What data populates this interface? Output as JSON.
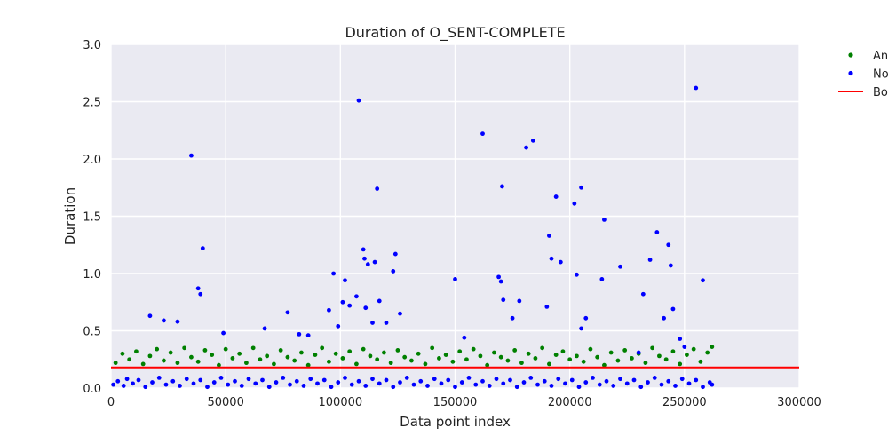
{
  "chart_data": {
    "type": "scatter",
    "title": "Duration of O_SENT-COMPLETE",
    "xlabel": "Data point index",
    "ylabel": "Duration",
    "xlim": [
      0,
      300000
    ],
    "ylim": [
      0,
      3.0
    ],
    "xticks": [
      0,
      50000,
      100000,
      150000,
      200000,
      250000,
      300000
    ],
    "xtick_labels": [
      "0",
      "50000",
      "100000",
      "150000",
      "200000",
      "250000",
      "300000"
    ],
    "yticks": [
      0.0,
      0.5,
      1.0,
      1.5,
      2.0,
      2.5,
      3.0
    ],
    "ytick_labels": [
      "0.0",
      "0.5",
      "1.0",
      "1.5",
      "2.0",
      "2.5",
      "3.0"
    ],
    "grid": true,
    "background": "#eaeaf2",
    "legend": {
      "placement": "outside-top-right",
      "entries": [
        {
          "label": "An",
          "marker": "dot",
          "color": "#008000"
        },
        {
          "label": "No",
          "marker": "dot",
          "color": "#0000ff"
        },
        {
          "label": "Bo",
          "marker": "line",
          "color": "#ff0000"
        }
      ]
    },
    "series": [
      {
        "name": "An",
        "color": "#008000",
        "points": [
          [
            2000,
            0.22
          ],
          [
            5000,
            0.3
          ],
          [
            8000,
            0.25
          ],
          [
            11000,
            0.32
          ],
          [
            14000,
            0.21
          ],
          [
            17000,
            0.28
          ],
          [
            20000,
            0.34
          ],
          [
            23000,
            0.24
          ],
          [
            26000,
            0.31
          ],
          [
            29000,
            0.22
          ],
          [
            32000,
            0.35
          ],
          [
            35000,
            0.27
          ],
          [
            38000,
            0.23
          ],
          [
            41000,
            0.33
          ],
          [
            44000,
            0.29
          ],
          [
            47000,
            0.2
          ],
          [
            50000,
            0.34
          ],
          [
            53000,
            0.26
          ],
          [
            56000,
            0.3
          ],
          [
            59000,
            0.22
          ],
          [
            62000,
            0.35
          ],
          [
            65000,
            0.25
          ],
          [
            68000,
            0.28
          ],
          [
            71000,
            0.21
          ],
          [
            74000,
            0.33
          ],
          [
            77000,
            0.27
          ],
          [
            80000,
            0.24
          ],
          [
            83000,
            0.31
          ],
          [
            86000,
            0.2
          ],
          [
            89000,
            0.29
          ],
          [
            92000,
            0.35
          ],
          [
            95000,
            0.23
          ],
          [
            98000,
            0.3
          ],
          [
            101000,
            0.26
          ],
          [
            104000,
            0.32
          ],
          [
            107000,
            0.21
          ],
          [
            110000,
            0.34
          ],
          [
            113000,
            0.28
          ],
          [
            116000,
            0.25
          ],
          [
            119000,
            0.31
          ],
          [
            122000,
            0.22
          ],
          [
            125000,
            0.33
          ],
          [
            128000,
            0.27
          ],
          [
            131000,
            0.24
          ],
          [
            134000,
            0.3
          ],
          [
            137000,
            0.21
          ],
          [
            140000,
            0.35
          ],
          [
            143000,
            0.26
          ],
          [
            146000,
            0.29
          ],
          [
            149000,
            0.23
          ],
          [
            152000,
            0.32
          ],
          [
            155000,
            0.25
          ],
          [
            158000,
            0.34
          ],
          [
            161000,
            0.28
          ],
          [
            164000,
            0.2
          ],
          [
            167000,
            0.31
          ],
          [
            170000,
            0.27
          ],
          [
            173000,
            0.24
          ],
          [
            176000,
            0.33
          ],
          [
            179000,
            0.22
          ],
          [
            182000,
            0.3
          ],
          [
            185000,
            0.26
          ],
          [
            188000,
            0.35
          ],
          [
            191000,
            0.21
          ],
          [
            194000,
            0.29
          ],
          [
            197000,
            0.32
          ],
          [
            200000,
            0.25
          ],
          [
            203000,
            0.28
          ],
          [
            206000,
            0.23
          ],
          [
            209000,
            0.34
          ],
          [
            212000,
            0.27
          ],
          [
            215000,
            0.2
          ],
          [
            218000,
            0.31
          ],
          [
            221000,
            0.24
          ],
          [
            224000,
            0.33
          ],
          [
            227000,
            0.26
          ],
          [
            230000,
            0.3
          ],
          [
            233000,
            0.22
          ],
          [
            236000,
            0.35
          ],
          [
            239000,
            0.28
          ],
          [
            242000,
            0.25
          ],
          [
            245000,
            0.32
          ],
          [
            248000,
            0.21
          ],
          [
            251000,
            0.29
          ],
          [
            254000,
            0.34
          ],
          [
            257000,
            0.23
          ],
          [
            260000,
            0.31
          ],
          [
            262000,
            0.36
          ]
        ]
      },
      {
        "name": "No",
        "color": "#0000ff",
        "points": [
          [
            1000,
            0.03
          ],
          [
            3000,
            0.06
          ],
          [
            5500,
            0.02
          ],
          [
            7000,
            0.08
          ],
          [
            9500,
            0.04
          ],
          [
            12000,
            0.07
          ],
          [
            15000,
            0.01
          ],
          [
            18000,
            0.05
          ],
          [
            21000,
            0.09
          ],
          [
            24000,
            0.03
          ],
          [
            27000,
            0.06
          ],
          [
            30000,
            0.02
          ],
          [
            33000,
            0.08
          ],
          [
            36000,
            0.04
          ],
          [
            39000,
            0.07
          ],
          [
            42000,
            0.01
          ],
          [
            45000,
            0.05
          ],
          [
            48000,
            0.09
          ],
          [
            51000,
            0.03
          ],
          [
            54000,
            0.06
          ],
          [
            57000,
            0.02
          ],
          [
            60000,
            0.08
          ],
          [
            63000,
            0.04
          ],
          [
            66000,
            0.07
          ],
          [
            69000,
            0.01
          ],
          [
            72000,
            0.05
          ],
          [
            75000,
            0.09
          ],
          [
            78000,
            0.03
          ],
          [
            81000,
            0.06
          ],
          [
            84000,
            0.02
          ],
          [
            87000,
            0.08
          ],
          [
            90000,
            0.04
          ],
          [
            93000,
            0.07
          ],
          [
            96000,
            0.01
          ],
          [
            99000,
            0.05
          ],
          [
            102000,
            0.09
          ],
          [
            105000,
            0.03
          ],
          [
            108000,
            0.06
          ],
          [
            111000,
            0.02
          ],
          [
            114000,
            0.08
          ],
          [
            117000,
            0.04
          ],
          [
            120000,
            0.07
          ],
          [
            123000,
            0.01
          ],
          [
            126000,
            0.05
          ],
          [
            129000,
            0.09
          ],
          [
            132000,
            0.03
          ],
          [
            135000,
            0.06
          ],
          [
            138000,
            0.02
          ],
          [
            141000,
            0.08
          ],
          [
            144000,
            0.04
          ],
          [
            147000,
            0.07
          ],
          [
            150000,
            0.01
          ],
          [
            153000,
            0.05
          ],
          [
            156000,
            0.09
          ],
          [
            159000,
            0.03
          ],
          [
            162000,
            0.06
          ],
          [
            165000,
            0.02
          ],
          [
            168000,
            0.08
          ],
          [
            171000,
            0.04
          ],
          [
            174000,
            0.07
          ],
          [
            177000,
            0.01
          ],
          [
            180000,
            0.05
          ],
          [
            183000,
            0.09
          ],
          [
            186000,
            0.03
          ],
          [
            189000,
            0.06
          ],
          [
            192000,
            0.02
          ],
          [
            195000,
            0.08
          ],
          [
            198000,
            0.04
          ],
          [
            201000,
            0.07
          ],
          [
            204000,
            0.01
          ],
          [
            207000,
            0.05
          ],
          [
            210000,
            0.09
          ],
          [
            213000,
            0.03
          ],
          [
            216000,
            0.06
          ],
          [
            219000,
            0.02
          ],
          [
            222000,
            0.08
          ],
          [
            225000,
            0.04
          ],
          [
            228000,
            0.07
          ],
          [
            231000,
            0.01
          ],
          [
            234000,
            0.05
          ],
          [
            237000,
            0.09
          ],
          [
            240000,
            0.03
          ],
          [
            243000,
            0.06
          ],
          [
            246000,
            0.02
          ],
          [
            249000,
            0.08
          ],
          [
            252000,
            0.04
          ],
          [
            255000,
            0.07
          ],
          [
            258000,
            0.01
          ],
          [
            261000,
            0.05
          ],
          [
            262000,
            0.03
          ],
          [
            17000,
            0.63
          ],
          [
            23000,
            0.59
          ],
          [
            29000,
            0.58
          ],
          [
            35000,
            2.03
          ],
          [
            38000,
            0.87
          ],
          [
            39000,
            0.82
          ],
          [
            40000,
            1.22
          ],
          [
            49000,
            0.48
          ],
          [
            67000,
            0.52
          ],
          [
            77000,
            0.66
          ],
          [
            82000,
            0.47
          ],
          [
            86000,
            0.46
          ],
          [
            95000,
            0.68
          ],
          [
            97000,
            1.0
          ],
          [
            99000,
            0.54
          ],
          [
            101000,
            0.75
          ],
          [
            102000,
            0.94
          ],
          [
            104000,
            0.72
          ],
          [
            107000,
            0.8
          ],
          [
            108000,
            2.51
          ],
          [
            110000,
            1.21
          ],
          [
            110500,
            1.13
          ],
          [
            111000,
            0.7
          ],
          [
            112000,
            1.08
          ],
          [
            114000,
            0.57
          ],
          [
            115000,
            1.1
          ],
          [
            116000,
            1.74
          ],
          [
            117000,
            0.76
          ],
          [
            120000,
            0.57
          ],
          [
            123000,
            1.02
          ],
          [
            124000,
            1.17
          ],
          [
            126000,
            0.65
          ],
          [
            150000,
            0.95
          ],
          [
            154000,
            0.44
          ],
          [
            162000,
            2.22
          ],
          [
            169000,
            0.97
          ],
          [
            170000,
            0.93
          ],
          [
            170500,
            1.76
          ],
          [
            171000,
            0.77
          ],
          [
            175000,
            0.61
          ],
          [
            178000,
            0.76
          ],
          [
            181000,
            2.1
          ],
          [
            184000,
            2.16
          ],
          [
            190000,
            0.71
          ],
          [
            191000,
            1.33
          ],
          [
            192000,
            1.13
          ],
          [
            194000,
            1.67
          ],
          [
            196000,
            1.1
          ],
          [
            202000,
            1.61
          ],
          [
            203000,
            0.99
          ],
          [
            205000,
            1.75
          ],
          [
            207000,
            0.61
          ],
          [
            214000,
            0.95
          ],
          [
            215000,
            1.47
          ],
          [
            222000,
            1.06
          ],
          [
            232000,
            0.82
          ],
          [
            235000,
            1.12
          ],
          [
            238000,
            1.36
          ],
          [
            241000,
            0.61
          ],
          [
            243000,
            1.25
          ],
          [
            244000,
            1.07
          ],
          [
            245000,
            0.69
          ],
          [
            255000,
            2.62
          ],
          [
            258000,
            0.94
          ],
          [
            248000,
            0.43
          ],
          [
            250000,
            0.36
          ],
          [
            205000,
            0.52
          ],
          [
            230000,
            0.31
          ]
        ]
      }
    ],
    "reference_line": {
      "name": "Bo",
      "y": 0.18,
      "color": "#ff0000"
    }
  }
}
